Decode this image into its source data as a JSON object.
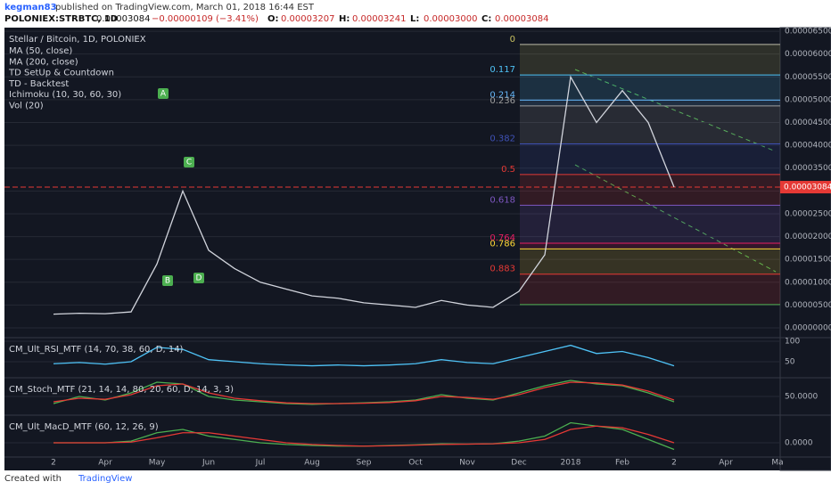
{
  "header": {
    "author": "kegman83",
    "published": "published on TradingView.com, March 01, 2018 16:44 EST",
    "symbol": "POLONIEX:STRBTC, 1D",
    "last": "0.00003084",
    "change": "−0.00000109 (−3.41%)",
    "ohlc": [
      {
        "k": "O:",
        "v": "0.00003207"
      },
      {
        "k": "H:",
        "v": "0.00003241"
      },
      {
        "k": "L:",
        "v": "0.00003000"
      },
      {
        "k": "C:",
        "v": "0.00003084"
      }
    ]
  },
  "chart_data": [
    {
      "type": "line",
      "title": "Stellar / Bitcoin, 1D, POLONIEX",
      "legend_items": [
        "MA (50, close)",
        "MA (200, close)",
        "TD SetUp & Countdown",
        "TD - Backtest",
        "Ichimoku (10, 30, 60, 30)",
        "Vol (20)"
      ],
      "categories": [
        "2",
        null,
        "Apr",
        null,
        "May",
        null,
        "Jun",
        null,
        "Jul",
        null,
        "Aug",
        null,
        "Sep",
        null,
        "Oct",
        null,
        "Nov",
        null,
        "Dec",
        null,
        "2018",
        null,
        "Feb",
        null,
        "2",
        null,
        "Apr",
        null,
        "Ma"
      ],
      "values": [
        3e-06,
        3.2e-06,
        3.1e-06,
        3.5e-06,
        1.4e-05,
        3e-05,
        1.7e-05,
        1.3e-05,
        1e-05,
        8.5e-06,
        7e-06,
        6.5e-06,
        5.5e-06,
        5e-06,
        4.5e-06,
        6e-06,
        5e-06,
        4.5e-06,
        8e-06,
        1.6e-05,
        5.5e-05,
        4.5e-05,
        5.2e-05,
        4.5e-05,
        3.084e-05,
        null,
        null,
        null,
        null
      ],
      "color": "#d1d4dc",
      "ylim": [
        -1.95e-06,
        6.56e-05
      ],
      "yticks": [
        {
          "value": 0,
          "label": "0.00000000"
        },
        {
          "value": 5e-06,
          "label": "0.00000500"
        },
        {
          "value": 1e-05,
          "label": "0.00001000"
        },
        {
          "value": 1.5e-05,
          "label": "0.00001500"
        },
        {
          "value": 2e-05,
          "label": "0.00002000"
        },
        {
          "value": 2.5e-05,
          "label": "0.00002500"
        },
        {
          "value": 3e-05,
          "label": "0.00003000"
        },
        {
          "value": 3.5e-05,
          "label": "0.00003500"
        },
        {
          "value": 4e-05,
          "label": "0.00004000"
        },
        {
          "value": 4.5e-05,
          "label": "0.00004500"
        },
        {
          "value": 5e-05,
          "label": "0.00005000"
        },
        {
          "value": 5.5e-05,
          "label": "0.00005500"
        },
        {
          "value": 6e-05,
          "label": "0.00006000"
        },
        {
          "value": 6.5e-05,
          "label": "0.00006500"
        }
      ],
      "last_price": {
        "value": 3.084e-05,
        "label": "0.00003084"
      },
      "fib": {
        "high": 6.21e-05,
        "low": 5.1e-06,
        "levels": [
          0,
          0.117,
          0.214,
          0.236,
          0.382,
          0.5,
          0.618,
          0.764,
          0.786,
          0.883
        ],
        "colors": [
          "#c8c060",
          "#4fc3f7",
          "#64b5f6",
          "#9e9e9e",
          "#3f51b5",
          "#e53935",
          "#7e57c2",
          "#e91e63",
          "#fdd835",
          "#e53935"
        ]
      },
      "annotations": [
        "A",
        "B",
        "C",
        "D"
      ]
    },
    {
      "type": "line",
      "title": "CM_Ult_RSI_MTF (14, 70, 38, 60, D, 14)",
      "values": [
        45,
        48,
        44,
        50,
        85,
        80,
        55,
        50,
        45,
        42,
        40,
        42,
        40,
        42,
        45,
        55,
        48,
        45,
        60,
        75,
        90,
        70,
        75,
        60,
        40
      ],
      "color": "#4fc3f7",
      "ylim": [
        13,
        106.5
      ],
      "yticks": [
        50,
        100
      ]
    },
    {
      "type": "line",
      "title": "CM_Stoch_MTF (21, 14, 14, 80, 20, 60, D, 14, 3, 3)",
      "series": [
        {
          "color": "#4caf50",
          "values": [
            30,
            50,
            40,
            60,
            90,
            85,
            50,
            40,
            35,
            30,
            28,
            30,
            32,
            35,
            40,
            55,
            45,
            40,
            60,
            80,
            95,
            85,
            80,
            60,
            35
          ]
        },
        {
          "color": "#e53935",
          "values": [
            35,
            45,
            42,
            55,
            80,
            85,
            60,
            45,
            38,
            32,
            30,
            30,
            31,
            33,
            38,
            50,
            47,
            42,
            55,
            75,
            90,
            88,
            82,
            65,
            40
          ]
        }
      ],
      "ylim": [
        0,
        100
      ],
      "yticks": [
        {
          "value": 50,
          "label": "50.0000"
        }
      ]
    },
    {
      "type": "line",
      "title": "CM_Ult_MacD_MTF (60, 12, 26, 9)",
      "series": [
        {
          "color": "#4caf50",
          "values": [
            0,
            0,
            0,
            5e-07,
            3e-06,
            4e-06,
            2e-06,
            1e-06,
            0,
            -5e-07,
            -8e-07,
            -1e-06,
            -1e-06,
            -8e-07,
            -6e-07,
            -3e-07,
            -4e-07,
            -3e-07,
            5e-07,
            2e-06,
            6e-06,
            5e-06,
            4e-06,
            1e-06,
            -2e-06
          ]
        },
        {
          "color": "#e53935",
          "values": [
            0,
            0,
            0,
            2e-07,
            1.5e-06,
            3e-06,
            3e-06,
            2e-06,
            1e-06,
            0,
            -5e-07,
            -8e-07,
            -1e-06,
            -9e-07,
            -7e-07,
            -5e-07,
            -4e-07,
            -3e-07,
            0,
            1e-06,
            4e-06,
            5e-06,
            4.5e-06,
            2.5e-06,
            0
          ]
        }
      ],
      "ylim": [
        -4e-06,
        8e-06
      ],
      "yticks": [
        {
          "value": 0,
          "label": "0.0000"
        }
      ]
    }
  ],
  "footer": {
    "created": "Created with",
    "brand": "TradingView"
  }
}
